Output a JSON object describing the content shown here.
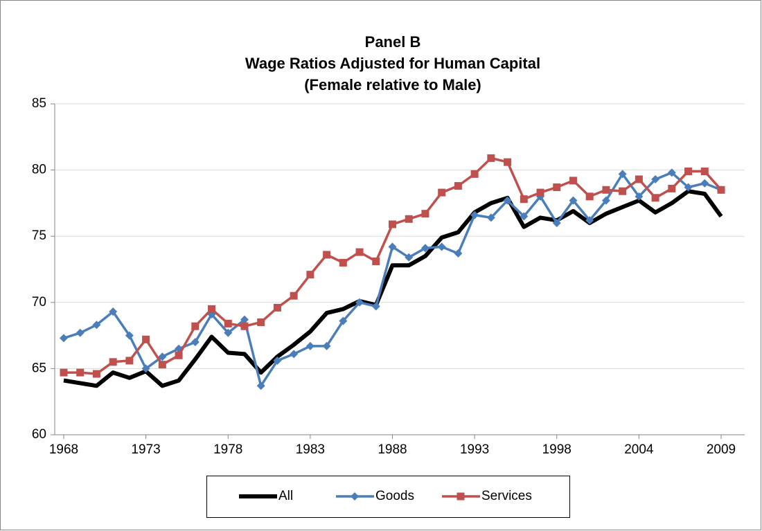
{
  "chart_data": {
    "type": "line",
    "title": [
      "Panel B",
      "Wage Ratios Adjusted for Human Capital",
      "(Female relative to Male)"
    ],
    "categories": [
      "1968",
      null,
      null,
      null,
      null,
      "1973",
      null,
      null,
      null,
      null,
      "1978",
      null,
      null,
      null,
      null,
      "1983",
      null,
      null,
      null,
      null,
      "1988",
      null,
      null,
      null,
      null,
      "1993",
      null,
      null,
      null,
      null,
      "1998",
      null,
      null,
      null,
      null,
      "2004",
      null,
      null,
      null,
      null,
      "2009"
    ],
    "series": [
      {
        "name": "All",
        "color": "#000000",
        "marker": "none",
        "values": [
          64.1,
          63.9,
          63.7,
          64.7,
          64.3,
          64.8,
          63.7,
          64.1,
          65.7,
          67.4,
          66.2,
          66.1,
          64.7,
          65.9,
          66.8,
          67.8,
          69.2,
          69.5,
          70.1,
          69.8,
          72.8,
          72.8,
          73.5,
          74.9,
          75.3,
          76.8,
          77.5,
          77.9,
          75.7,
          76.4,
          76.2,
          76.9,
          76.0,
          76.7,
          77.2,
          77.7,
          76.8,
          77.5,
          78.4,
          78.2,
          76.5
        ]
      },
      {
        "name": "Goods",
        "color": "#4a7ebb",
        "marker": "diamond",
        "values": [
          67.3,
          67.7,
          68.3,
          69.3,
          67.5,
          65.0,
          65.9,
          66.5,
          67.0,
          69.1,
          67.7,
          68.7,
          63.7,
          65.6,
          66.1,
          66.7,
          66.7,
          68.6,
          70.0,
          69.7,
          74.2,
          73.4,
          74.1,
          74.2,
          73.7,
          76.6,
          76.4,
          77.7,
          76.5,
          78.0,
          76.0,
          77.7,
          76.2,
          77.7,
          79.7,
          78.0,
          79.3,
          79.8,
          78.7,
          79.0,
          78.5
        ]
      },
      {
        "name": "Services",
        "color": "#c0504d",
        "marker": "square",
        "values": [
          64.7,
          64.7,
          64.6,
          65.5,
          65.6,
          67.2,
          65.3,
          66.0,
          68.2,
          69.5,
          68.4,
          68.2,
          68.5,
          69.6,
          70.5,
          72.1,
          73.6,
          73.0,
          73.8,
          73.1,
          75.9,
          76.3,
          76.7,
          78.3,
          78.8,
          79.7,
          80.9,
          80.6,
          77.8,
          78.3,
          78.7,
          79.2,
          78.0,
          78.5,
          78.4,
          79.3,
          77.9,
          78.6,
          79.9,
          79.9,
          78.5
        ]
      }
    ],
    "ylim": [
      60,
      85
    ],
    "yticks": [
      60,
      65,
      70,
      75,
      80,
      85
    ],
    "grid": true,
    "legend": "bottom"
  }
}
